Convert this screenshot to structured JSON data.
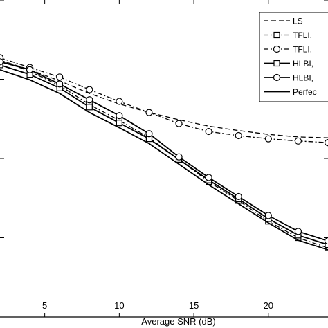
{
  "chart_data": {
    "type": "line",
    "xlabel": "Average SNR (dB)",
    "ylabel": "",
    "title": "",
    "xlim": [
      2,
      24
    ],
    "ylim": [
      0,
      1
    ],
    "x_ticks": [
      5,
      10,
      15,
      20
    ],
    "x_tick_labels": [
      "5",
      "10",
      "15",
      "20"
    ],
    "y_ticks": [
      0.0,
      0.25,
      0.5,
      0.75,
      1.0
    ],
    "grid": false,
    "legend_position": "top-right",
    "series": [
      {
        "name": "LS",
        "style": "dashed",
        "marker": "none",
        "x": [
          2,
          4,
          6,
          8,
          10,
          12,
          14,
          16,
          18,
          20,
          22,
          24
        ],
        "y": [
          0.81,
          0.78,
          0.745,
          0.705,
          0.672,
          0.645,
          0.622,
          0.602,
          0.588,
          0.576,
          0.568,
          0.565
        ]
      },
      {
        "name": "TFLI,",
        "style": "dashdot",
        "marker": "square",
        "x": [
          2,
          4,
          6,
          8,
          10,
          12,
          14,
          16,
          18,
          20,
          22,
          24
        ],
        "y": [
          0.81,
          0.775,
          0.73,
          0.67,
          0.62,
          0.565,
          0.497,
          0.427,
          0.367,
          0.302,
          0.25,
          0.218
        ]
      },
      {
        "name": "TFLI,",
        "style": "dashdot",
        "marker": "circle",
        "x": [
          2,
          4,
          6,
          8,
          10,
          12,
          14,
          16,
          18,
          20,
          22,
          24
        ],
        "y": [
          0.818,
          0.787,
          0.757,
          0.717,
          0.68,
          0.645,
          0.61,
          0.585,
          0.572,
          0.562,
          0.555,
          0.55
        ]
      },
      {
        "name": "HLBI,",
        "style": "solid",
        "marker": "square",
        "x": [
          2,
          4,
          6,
          8,
          10,
          12,
          14,
          16,
          18,
          20,
          22,
          24
        ],
        "y": [
          0.795,
          0.765,
          0.722,
          0.662,
          0.612,
          0.562,
          0.497,
          0.432,
          0.372,
          0.31,
          0.258,
          0.228
        ]
      },
      {
        "name": "HLBI,",
        "style": "solid",
        "marker": "circle",
        "x": [
          2,
          4,
          6,
          8,
          10,
          12,
          14,
          16,
          18,
          20,
          22,
          24
        ],
        "y": [
          0.805,
          0.78,
          0.735,
          0.685,
          0.635,
          0.578,
          0.505,
          0.44,
          0.38,
          0.32,
          0.27,
          0.24
        ]
      },
      {
        "name": "Perfec",
        "style": "solid",
        "marker": "none",
        "x": [
          2,
          4,
          6,
          8,
          10,
          12,
          14,
          16,
          18,
          20,
          22,
          24
        ],
        "y": [
          0.78,
          0.748,
          0.705,
          0.645,
          0.597,
          0.547,
          0.482,
          0.417,
          0.357,
          0.297,
          0.242,
          0.212
        ]
      }
    ]
  }
}
